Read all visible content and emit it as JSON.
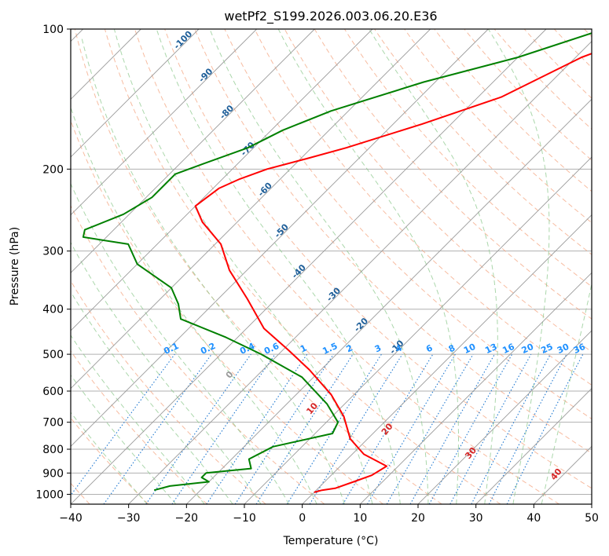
{
  "chart_data": {
    "type": "line",
    "title": "wetPf2_S199.2026.003.06.20.E36",
    "xlabel": "Temperature (°C)",
    "ylabel": "Pressure (hPa)",
    "xlim": [
      -40,
      50
    ],
    "ylim": [
      1050,
      100
    ],
    "y_scale": "log",
    "grid": true,
    "x_ticks": [
      "−40",
      "−30",
      "−20",
      "−10",
      "0",
      "10",
      "20",
      "30",
      "40",
      "50"
    ],
    "y_ticks": [
      "100",
      "200",
      "300",
      "400",
      "500",
      "600",
      "700",
      "800",
      "900",
      "1000"
    ],
    "isotherm_labels": [
      "-100",
      "-90",
      "-80",
      "-70",
      "-60",
      "-50",
      "-40",
      "-30",
      "-20",
      "-10"
    ],
    "mixing_ratio_labels": [
      "0.1",
      "0.2",
      "0.4",
      "0.6",
      "1",
      "1.5",
      "2",
      "3",
      "4",
      "6",
      "8",
      "10",
      "13",
      "16",
      "20",
      "25",
      "30",
      "36"
    ],
    "adiabat_labels": [
      "0",
      "10",
      "20",
      "30",
      "40"
    ],
    "colors": {
      "temperature": "#ff0000",
      "dewpoint": "#008000",
      "isotherm": "#9a9a9a",
      "dry_adiabat": "#f4a582",
      "moist_adiabat": "#8fc98f",
      "mixing_ratio": "#1f78d0",
      "isotherm_label": "#1f5f99",
      "mixing_label": "#1e90ff",
      "adiabat_label": "#d62728"
    },
    "series": [
      {
        "name": "",
        "points": [
          [
            -20.7,
            100
          ],
          [
            -29,
            115
          ],
          [
            -36,
            140
          ],
          [
            -45,
            160
          ],
          [
            -54,
            180
          ],
          [
            -59,
            190
          ],
          [
            -64,
            200
          ],
          [
            -67,
            210
          ],
          [
            -69,
            220
          ],
          [
            -70,
            240
          ],
          [
            -66,
            260
          ],
          [
            -59,
            290
          ],
          [
            -53,
            330
          ],
          [
            -45,
            380
          ],
          [
            -37,
            440
          ],
          [
            -29,
            490
          ],
          [
            -22,
            540
          ],
          [
            -14,
            610
          ],
          [
            -8,
            680
          ],
          [
            -3,
            760
          ],
          [
            2,
            820
          ],
          [
            8,
            870
          ],
          [
            7,
            910
          ],
          [
            5,
            940
          ],
          [
            3,
            970
          ],
          [
            1,
            980
          ],
          [
            0,
            990
          ]
        ]
      },
      {
        "name": "",
        "points": [
          [
            -30,
            100
          ],
          [
            -40,
            115
          ],
          [
            -52,
            130
          ],
          [
            -63,
            150
          ],
          [
            -68,
            165
          ],
          [
            -71,
            180
          ],
          [
            -76,
            195
          ],
          [
            -79,
            205
          ],
          [
            -79,
            215
          ],
          [
            -79,
            230
          ],
          [
            -81,
            250
          ],
          [
            -85,
            270
          ],
          [
            -84,
            280
          ],
          [
            -75,
            290
          ],
          [
            -70,
            320
          ],
          [
            -60,
            360
          ],
          [
            -56,
            390
          ],
          [
            -53,
            420
          ],
          [
            -42,
            460
          ],
          [
            -33,
            500
          ],
          [
            -22,
            560
          ],
          [
            -13,
            640
          ],
          [
            -8,
            700
          ],
          [
            -7,
            740
          ],
          [
            -15,
            790
          ],
          [
            -17,
            840
          ],
          [
            -15,
            880
          ],
          [
            -22,
            900
          ],
          [
            -22,
            920
          ],
          [
            -20,
            940
          ],
          [
            -26,
            960
          ],
          [
            -28,
            980
          ]
        ]
      }
    ]
  }
}
